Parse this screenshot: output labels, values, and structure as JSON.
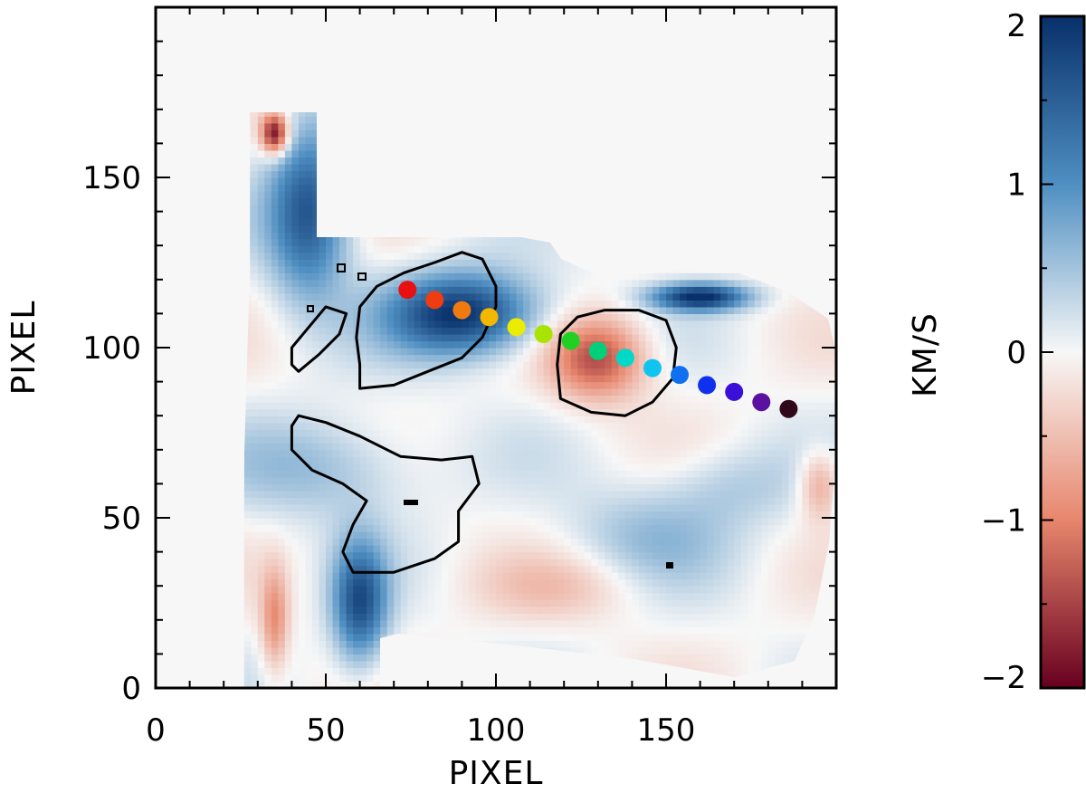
{
  "chart_data": {
    "type": "heatmap",
    "title": "",
    "xlabel": "PIXEL",
    "ylabel": "PIXEL",
    "xlim": [
      0,
      200
    ],
    "ylim": [
      0,
      200
    ],
    "x_ticks": [
      0,
      50,
      100,
      150
    ],
    "y_ticks": [
      0,
      50,
      100,
      150
    ],
    "colorbar": {
      "label": "KM/S",
      "range": [
        -2,
        2
      ],
      "ticks": [
        2,
        1,
        0,
        -1,
        -2
      ],
      "tick_labels": [
        "2",
        "1",
        "0",
        "−1",
        "−2"
      ],
      "colors": {
        "low": "#67001f",
        "mid": "#f7f7f7",
        "high": "#08306b"
      }
    },
    "blobs": [
      {
        "cx": 90,
        "cy": 110,
        "rx": 22,
        "ry": 12,
        "v": 2.0
      },
      {
        "cx": 45,
        "cy": 140,
        "rx": 12,
        "ry": 25,
        "v": 1.6
      },
      {
        "cx": 35,
        "cy": 163,
        "rx": 4,
        "ry": 6,
        "v": -2.0
      },
      {
        "cx": 130,
        "cy": 97,
        "rx": 14,
        "ry": 12,
        "v": -1.4
      },
      {
        "cx": 160,
        "cy": 115,
        "rx": 14,
        "ry": 4,
        "v": 2.0
      },
      {
        "cx": 50,
        "cy": 65,
        "rx": 28,
        "ry": 15,
        "v": 0.6
      },
      {
        "cx": 60,
        "cy": 25,
        "rx": 8,
        "ry": 18,
        "v": 1.6
      },
      {
        "cx": 170,
        "cy": 60,
        "rx": 20,
        "ry": 12,
        "v": 0.4
      },
      {
        "cx": 145,
        "cy": 45,
        "rx": 25,
        "ry": 15,
        "v": 0.5
      },
      {
        "cx": 120,
        "cy": 30,
        "rx": 25,
        "ry": 10,
        "v": -0.4
      },
      {
        "cx": 35,
        "cy": 20,
        "rx": 4,
        "ry": 15,
        "v": -0.9
      },
      {
        "cx": 195,
        "cy": 60,
        "rx": 6,
        "ry": 10,
        "v": -0.8
      }
    ],
    "contours": [
      {
        "points": [
          [
            60,
            88
          ],
          [
            70,
            89
          ],
          [
            80,
            93
          ],
          [
            90,
            97
          ],
          [
            96,
            103
          ],
          [
            100,
            112
          ],
          [
            100,
            118
          ],
          [
            96,
            126
          ],
          [
            90,
            128
          ],
          [
            82,
            125
          ],
          [
            73,
            122
          ],
          [
            65,
            118
          ],
          [
            60,
            112
          ],
          [
            59,
            103
          ],
          [
            60,
            95
          ]
        ]
      },
      {
        "points": [
          [
            119,
            85
          ],
          [
            128,
            81
          ],
          [
            138,
            80
          ],
          [
            146,
            84
          ],
          [
            152,
            91
          ],
          [
            153,
            100
          ],
          [
            150,
            108
          ],
          [
            142,
            111
          ],
          [
            132,
            111
          ],
          [
            124,
            109
          ],
          [
            119,
            104
          ],
          [
            118,
            95
          ]
        ]
      },
      {
        "points": [
          [
            42,
            93
          ],
          [
            48,
            98
          ],
          [
            54,
            104
          ],
          [
            56,
            110
          ],
          [
            50,
            112
          ],
          [
            45,
            106
          ],
          [
            40,
            100
          ],
          [
            40,
            95
          ]
        ]
      },
      {
        "points": [
          [
            42,
            80
          ],
          [
            50,
            78
          ],
          [
            60,
            74
          ],
          [
            72,
            68
          ],
          [
            84,
            67
          ],
          [
            93,
            68
          ],
          [
            95,
            60
          ],
          [
            89,
            52
          ],
          [
            89,
            43
          ],
          [
            82,
            38
          ],
          [
            70,
            34
          ],
          [
            58,
            34
          ],
          [
            55,
            40
          ],
          [
            58,
            48
          ],
          [
            62,
            55
          ],
          [
            55,
            60
          ],
          [
            46,
            64
          ],
          [
            40,
            70
          ],
          [
            40,
            77
          ]
        ]
      }
    ],
    "path_points": [
      {
        "x": 74,
        "y": 117,
        "color": "#e81010"
      },
      {
        "x": 82,
        "y": 114,
        "color": "#ef3c10"
      },
      {
        "x": 90,
        "y": 111,
        "color": "#f07a10"
      },
      {
        "x": 98,
        "y": 109,
        "color": "#f2b800"
      },
      {
        "x": 106,
        "y": 106,
        "color": "#ecec00"
      },
      {
        "x": 114,
        "y": 104,
        "color": "#a8e400"
      },
      {
        "x": 122,
        "y": 102,
        "color": "#22d022"
      },
      {
        "x": 130,
        "y": 99,
        "color": "#00d07a"
      },
      {
        "x": 138,
        "y": 97,
        "color": "#00d8c8"
      },
      {
        "x": 146,
        "y": 94,
        "color": "#10c4f0"
      },
      {
        "x": 154,
        "y": 92,
        "color": "#1070f0"
      },
      {
        "x": 162,
        "y": 89,
        "color": "#1030f0"
      },
      {
        "x": 170,
        "y": 87,
        "color": "#3a10d8"
      },
      {
        "x": 178,
        "y": 84,
        "color": "#5a10a0"
      },
      {
        "x": 186,
        "y": 82,
        "color": "#30081a"
      }
    ]
  }
}
